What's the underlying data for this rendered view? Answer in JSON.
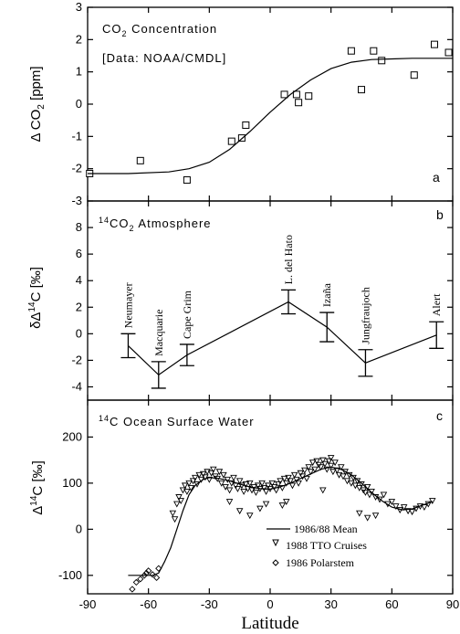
{
  "chart_data": [
    {
      "type": "scatter",
      "panel_letter": "a",
      "title": "CO2 Concentration",
      "title_parts": {
        "pre": "CO",
        "sub": "2",
        "post": " Concentration"
      },
      "subtitle": "[Data: NOAA/CMDL]",
      "subtitle_parts": {
        "pre": "[Data: NOAA/CMDL]"
      },
      "ylabel": "Δ CO2 [ppm]",
      "ylabel_parts": {
        "pre": "Δ CO",
        "sub": "2",
        "post": " [ppm]"
      },
      "xlim": [
        -90,
        90
      ],
      "ylim": [
        -3,
        3
      ],
      "yticks": [
        -3,
        -2,
        -1,
        0,
        1,
        2,
        3
      ],
      "series": [
        {
          "kind": "points",
          "marker": "square",
          "x": [
            -89,
            -64,
            -41,
            -19,
            -14,
            -12,
            7,
            13,
            14,
            19,
            40,
            45,
            51,
            55,
            71,
            81,
            88
          ],
          "y": [
            -2.15,
            -1.75,
            -2.35,
            -1.15,
            -1.05,
            -0.65,
            0.3,
            0.3,
            0.05,
            0.25,
            1.65,
            0.45,
            1.65,
            1.35,
            0.9,
            1.85,
            1.6
          ]
        },
        {
          "kind": "curve",
          "x": [
            -90,
            -70,
            -50,
            -40,
            -30,
            -20,
            -10,
            0,
            10,
            20,
            30,
            40,
            50,
            60,
            70,
            80,
            90
          ],
          "y": [
            -2.15,
            -2.15,
            -2.1,
            -2.0,
            -1.8,
            -1.4,
            -0.85,
            -0.25,
            0.3,
            0.75,
            1.1,
            1.3,
            1.38,
            1.4,
            1.42,
            1.42,
            1.42
          ]
        }
      ]
    },
    {
      "type": "line",
      "panel_letter": "b",
      "title": "14CO2 Atmosphere",
      "title_parts": {
        "sup": "14",
        "pre": "CO",
        "sub": "2",
        "post": " Atmosphere"
      },
      "ylabel": "δΔ14C [‰]",
      "ylabel_parts": {
        "pre": "δΔ",
        "sup": "14",
        "post": "C [‰]"
      },
      "xlim": [
        -90,
        90
      ],
      "ylim": [
        -5,
        10
      ],
      "yticks": [
        -4,
        -2,
        0,
        2,
        4,
        6,
        8
      ],
      "stations": [
        {
          "name": "Neumayer",
          "x": -70,
          "y": -0.9,
          "err": 0.9
        },
        {
          "name": "Macquarie",
          "x": -55,
          "y": -3.1,
          "err": 1.0
        },
        {
          "name": "Cape Grim",
          "x": -41,
          "y": -1.6,
          "err": 0.8
        },
        {
          "name": "L. del Hato",
          "x": 9,
          "y": 2.4,
          "err": 0.9
        },
        {
          "name": "Izaña",
          "x": 28,
          "y": 0.5,
          "err": 1.1
        },
        {
          "name": "Jungfraujoch",
          "x": 47,
          "y": -2.2,
          "err": 1.0
        },
        {
          "name": "Alert",
          "x": 82,
          "y": -0.1,
          "err": 1.0
        }
      ]
    },
    {
      "type": "scatter",
      "panel_letter": "c",
      "title": "14C Ocean Surface Water",
      "title_parts": {
        "sup": "14",
        "pre": "C Ocean Surface Water"
      },
      "xlabel": "Latitude",
      "ylabel": "Δ14C [‰]",
      "ylabel_parts": {
        "pre": "Δ",
        "sup": "14",
        "post": "C [‰]"
      },
      "xlim": [
        -90,
        90
      ],
      "ylim": [
        -140,
        280
      ],
      "xticks": [
        -90,
        -60,
        -30,
        0,
        30,
        60,
        90
      ],
      "yticks": [
        -100,
        0,
        100,
        200
      ],
      "legend": {
        "position": "bottom-right",
        "entries": [
          "1986/88 Mean",
          "1988 TTO Cruises",
          "1986 Polarstem"
        ]
      },
      "series": [
        {
          "name": "1986/88 Mean",
          "kind": "curve",
          "x": [
            -70,
            -58,
            -55,
            -52,
            -49,
            -46,
            -43,
            -40,
            -37,
            -33,
            -30,
            -25,
            -20,
            -15,
            -10,
            -5,
            0,
            5,
            10,
            15,
            20,
            25,
            30,
            35,
            40,
            45,
            50,
            55,
            60,
            65,
            70,
            75,
            80
          ],
          "y": [
            -100,
            -100,
            -95,
            -70,
            -40,
            0,
            40,
            75,
            95,
            108,
            112,
            110,
            105,
            98,
            92,
            88,
            87,
            92,
            100,
            110,
            120,
            130,
            135,
            130,
            118,
            100,
            80,
            62,
            48,
            42,
            44,
            52,
            60
          ]
        },
        {
          "name": "1988 TTO Cruises",
          "kind": "points",
          "marker": "triangle-down",
          "x": [
            -48,
            -47,
            -46,
            -45,
            -44,
            -43,
            -42,
            -41,
            -40,
            -39,
            -38,
            -37,
            -36,
            -35,
            -34,
            -33,
            -32,
            -31,
            -30,
            -29,
            -28,
            -27,
            -26,
            -25,
            -24,
            -23,
            -22,
            -21,
            -20,
            -19,
            -18,
            -17,
            -16,
            -15,
            -14,
            -13,
            -12,
            -11,
            -10,
            -9,
            -8,
            -7,
            -6,
            -5,
            -4,
            -3,
            -2,
            -1,
            0,
            1,
            2,
            3,
            4,
            5,
            6,
            7,
            8,
            9,
            10,
            11,
            12,
            13,
            14,
            15,
            16,
            17,
            18,
            19,
            20,
            21,
            22,
            23,
            24,
            25,
            26,
            27,
            28,
            29,
            30,
            31,
            32,
            33,
            34,
            35,
            36,
            37,
            38,
            39,
            40,
            41,
            42,
            43,
            44,
            45,
            46,
            47,
            48,
            49,
            50,
            52,
            54,
            56,
            58,
            60,
            62,
            64,
            66,
            68,
            70,
            72,
            74,
            76,
            78,
            80,
            -15,
            -10,
            -5,
            6,
            8,
            44,
            48,
            52,
            -20,
            -2,
            26,
            30
          ],
          "y": [
            35,
            22,
            55,
            70,
            62,
            85,
            95,
            82,
            100,
            90,
            105,
            112,
            98,
            118,
            108,
            120,
            113,
            125,
            108,
            122,
            130,
            115,
            110,
            125,
            100,
            118,
            92,
            108,
            85,
            100,
            112,
            95,
            88,
            105,
            95,
            82,
            98,
            88,
            100,
            85,
            92,
            80,
            95,
            88,
            100,
            90,
            82,
            95,
            88,
            100,
            92,
            85,
            98,
            105,
            90,
            110,
            100,
            112,
            105,
            95,
            118,
            108,
            100,
            122,
            115,
            128,
            110,
            135,
            125,
            145,
            130,
            148,
            140,
            135,
            150,
            142,
            130,
            148,
            138,
            125,
            145,
            128,
            118,
            135,
            115,
            125,
            105,
            118,
            100,
            112,
            95,
            105,
            90,
            98,
            85,
            80,
            92,
            75,
            82,
            70,
            65,
            75,
            55,
            60,
            50,
            42,
            48,
            40,
            38,
            45,
            50,
            48,
            55,
            62,
            40,
            30,
            45,
            52,
            60,
            35,
            25,
            30,
            60,
            55,
            85,
            155
          ],
          "color": "#000000"
        },
        {
          "name": "1986 Polarstem",
          "kind": "points",
          "marker": "diamond",
          "x": [
            -68,
            -66,
            -64,
            -62,
            -61,
            -60,
            -58,
            -56,
            -55
          ],
          "y": [
            -130,
            -115,
            -108,
            -100,
            -95,
            -90,
            -98,
            -105,
            -85
          ]
        }
      ]
    }
  ]
}
